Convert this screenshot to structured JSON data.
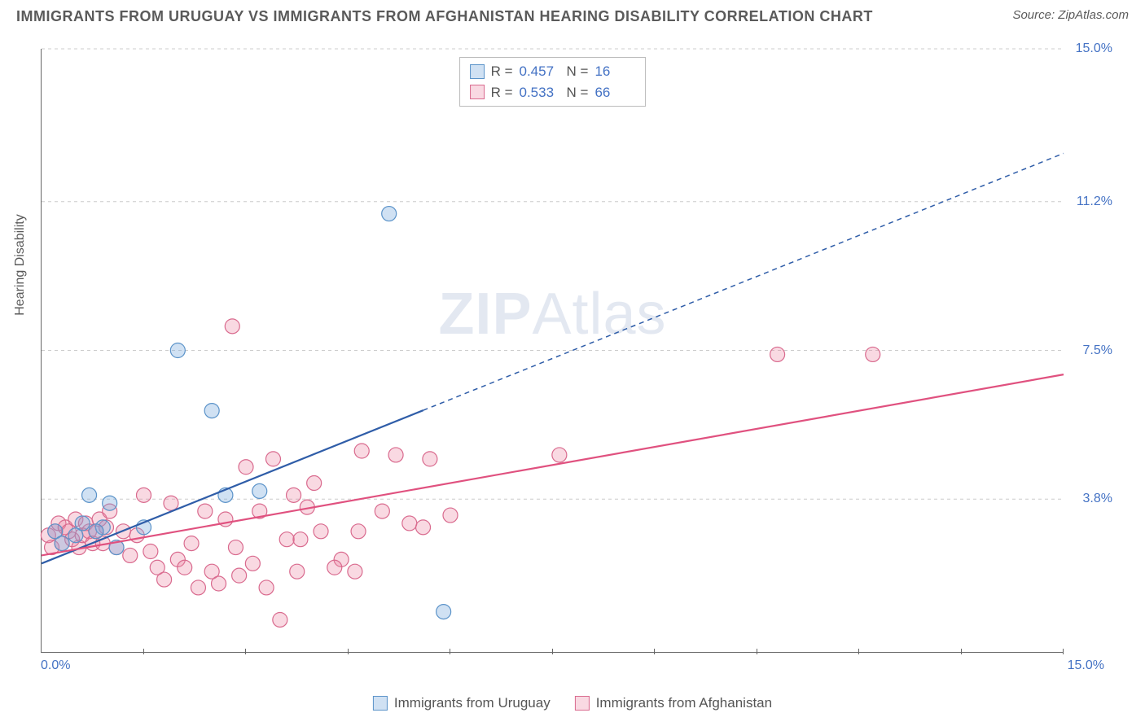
{
  "header": {
    "title": "IMMIGRANTS FROM URUGUAY VS IMMIGRANTS FROM AFGHANISTAN HEARING DISABILITY CORRELATION CHART",
    "source": "Source: ZipAtlas.com"
  },
  "watermark": {
    "zip": "ZIP",
    "atlas": "Atlas"
  },
  "chart": {
    "type": "scatter",
    "y_axis_title": "Hearing Disability",
    "xlim": [
      0,
      15
    ],
    "ylim": [
      0,
      15
    ],
    "x_labels": {
      "min": "0.0%",
      "max": "15.0%"
    },
    "y_ticks": [
      {
        "v": 3.8,
        "label": "3.8%"
      },
      {
        "v": 7.5,
        "label": "7.5%"
      },
      {
        "v": 11.2,
        "label": "11.2%"
      },
      {
        "v": 15.0,
        "label": "15.0%"
      }
    ],
    "x_tick_positions": [
      1.5,
      3.0,
      4.5,
      6.0,
      7.5,
      9.0,
      10.5,
      12.0,
      13.5,
      15.0
    ],
    "grid_color": "#cccccc",
    "axis_color": "#666666",
    "background_color": "#ffffff",
    "label_color": "#4472c4",
    "marker_radius": 9,
    "marker_stroke_width": 1.2,
    "line_width": 2.2,
    "series": [
      {
        "name": "Immigrants from Uruguay",
        "fill": "rgba(120,170,220,0.35)",
        "stroke": "#5b93c9",
        "line_color": "#2f5da8",
        "R": "0.457",
        "N": "16",
        "trend": {
          "x1": 0,
          "y1": 2.2,
          "solid_until_x": 5.6,
          "x2": 15,
          "y2": 12.4
        },
        "points": [
          [
            0.2,
            3.0
          ],
          [
            0.3,
            2.7
          ],
          [
            0.6,
            3.2
          ],
          [
            0.7,
            3.9
          ],
          [
            0.9,
            3.1
          ],
          [
            1.1,
            2.6
          ],
          [
            1.5,
            3.1
          ],
          [
            2.0,
            7.5
          ],
          [
            2.5,
            6.0
          ],
          [
            2.7,
            3.9
          ],
          [
            3.2,
            4.0
          ],
          [
            5.1,
            10.9
          ],
          [
            5.9,
            1.0
          ],
          [
            1.0,
            3.7
          ],
          [
            0.5,
            2.9
          ],
          [
            0.8,
            3.0
          ]
        ]
      },
      {
        "name": "Immigrants from Afghanistan",
        "fill": "rgba(235,130,160,0.3)",
        "stroke": "#d96a8e",
        "line_color": "#e0517f",
        "R": "0.533",
        "N": "66",
        "trend": {
          "x1": 0,
          "y1": 2.4,
          "solid_until_x": 15,
          "x2": 15,
          "y2": 6.9
        },
        "points": [
          [
            0.1,
            2.9
          ],
          [
            0.15,
            2.6
          ],
          [
            0.2,
            3.0
          ],
          [
            0.25,
            3.2
          ],
          [
            0.3,
            2.7
          ],
          [
            0.35,
            3.1
          ],
          [
            0.4,
            3.0
          ],
          [
            0.45,
            2.8
          ],
          [
            0.5,
            3.3
          ],
          [
            0.55,
            2.6
          ],
          [
            0.6,
            2.9
          ],
          [
            0.65,
            3.2
          ],
          [
            0.7,
            3.0
          ],
          [
            0.75,
            2.7
          ],
          [
            0.8,
            3.0
          ],
          [
            0.85,
            3.3
          ],
          [
            0.9,
            2.7
          ],
          [
            0.95,
            3.1
          ],
          [
            1.0,
            3.5
          ],
          [
            1.1,
            2.6
          ],
          [
            1.2,
            3.0
          ],
          [
            1.3,
            2.4
          ],
          [
            1.4,
            2.9
          ],
          [
            1.5,
            3.9
          ],
          [
            1.6,
            2.5
          ],
          [
            1.7,
            2.1
          ],
          [
            1.8,
            1.8
          ],
          [
            1.9,
            3.7
          ],
          [
            2.0,
            2.3
          ],
          [
            2.1,
            2.1
          ],
          [
            2.2,
            2.7
          ],
          [
            2.3,
            1.6
          ],
          [
            2.4,
            3.5
          ],
          [
            2.5,
            2.0
          ],
          [
            2.6,
            1.7
          ],
          [
            2.7,
            3.3
          ],
          [
            2.8,
            8.1
          ],
          [
            2.85,
            2.6
          ],
          [
            2.9,
            1.9
          ],
          [
            3.0,
            4.6
          ],
          [
            3.1,
            2.2
          ],
          [
            3.2,
            3.5
          ],
          [
            3.3,
            1.6
          ],
          [
            3.4,
            4.8
          ],
          [
            3.5,
            0.8
          ],
          [
            3.6,
            2.8
          ],
          [
            3.7,
            3.9
          ],
          [
            3.75,
            2.0
          ],
          [
            3.8,
            2.8
          ],
          [
            3.9,
            3.6
          ],
          [
            4.0,
            4.2
          ],
          [
            4.1,
            3.0
          ],
          [
            4.4,
            2.3
          ],
          [
            4.6,
            2.0
          ],
          [
            4.65,
            3.0
          ],
          [
            4.7,
            5.0
          ],
          [
            5.0,
            3.5
          ],
          [
            5.2,
            4.9
          ],
          [
            5.4,
            3.2
          ],
          [
            5.6,
            3.1
          ],
          [
            5.7,
            4.8
          ],
          [
            6.0,
            3.4
          ],
          [
            7.6,
            4.9
          ],
          [
            10.8,
            7.4
          ],
          [
            12.2,
            7.4
          ],
          [
            4.3,
            2.1
          ]
        ]
      }
    ]
  },
  "stats_labels": {
    "R": "R =",
    "N": "N ="
  },
  "legend": {
    "series1": "Immigrants from Uruguay",
    "series2": "Immigrants from Afghanistan"
  }
}
